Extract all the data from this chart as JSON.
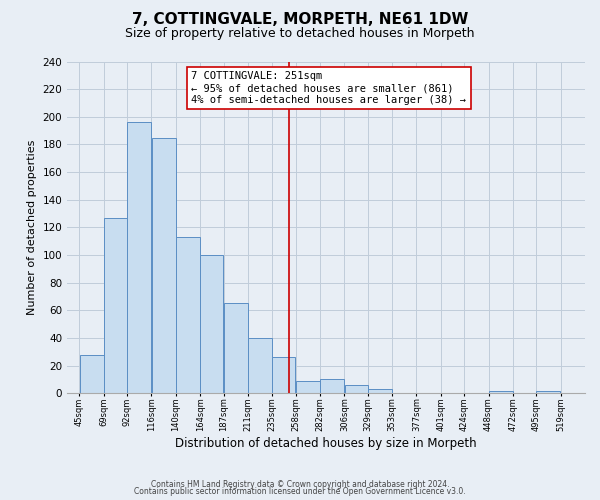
{
  "title": "7, COTTINGVALE, MORPETH, NE61 1DW",
  "subtitle": "Size of property relative to detached houses in Morpeth",
  "xlabel": "Distribution of detached houses by size in Morpeth",
  "ylabel": "Number of detached properties",
  "bar_left_edges": [
    45,
    69,
    92,
    116,
    140,
    164,
    187,
    211,
    235,
    258,
    282,
    306,
    329,
    353,
    377,
    401,
    424,
    448,
    472,
    495
  ],
  "bar_heights": [
    28,
    127,
    196,
    185,
    113,
    100,
    65,
    40,
    26,
    9,
    10,
    6,
    3,
    0,
    0,
    0,
    0,
    2,
    0,
    2
  ],
  "bar_widths": [
    24,
    23,
    24,
    24,
    24,
    23,
    24,
    24,
    23,
    24,
    24,
    23,
    24,
    24,
    24,
    23,
    24,
    24,
    23,
    24
  ],
  "tick_labels": [
    "45sqm",
    "69sqm",
    "92sqm",
    "116sqm",
    "140sqm",
    "164sqm",
    "187sqm",
    "211sqm",
    "235sqm",
    "258sqm",
    "282sqm",
    "306sqm",
    "329sqm",
    "353sqm",
    "377sqm",
    "401sqm",
    "424sqm",
    "448sqm",
    "472sqm",
    "495sqm",
    "519sqm"
  ],
  "tick_positions": [
    45,
    69,
    92,
    116,
    140,
    164,
    187,
    211,
    235,
    258,
    282,
    306,
    329,
    353,
    377,
    401,
    424,
    448,
    472,
    495,
    519
  ],
  "bar_color": "#c8ddf0",
  "bar_edge_color": "#5b8ec4",
  "vline_x": 251,
  "vline_color": "#cc0000",
  "ylim": [
    0,
    240
  ],
  "xlim": [
    33,
    543
  ],
  "yticks": [
    0,
    20,
    40,
    60,
    80,
    100,
    120,
    140,
    160,
    180,
    200,
    220,
    240
  ],
  "annotation_title": "7 COTTINGVALE: 251sqm",
  "annotation_line1": "← 95% of detached houses are smaller (861)",
  "annotation_line2": "4% of semi-detached houses are larger (38) →",
  "footer_line1": "Contains HM Land Registry data © Crown copyright and database right 2024.",
  "footer_line2": "Contains public sector information licensed under the Open Government Licence v3.0.",
  "bg_color": "#e8eef5",
  "grid_color": "#c0ccda",
  "title_fontsize": 11,
  "subtitle_fontsize": 9
}
